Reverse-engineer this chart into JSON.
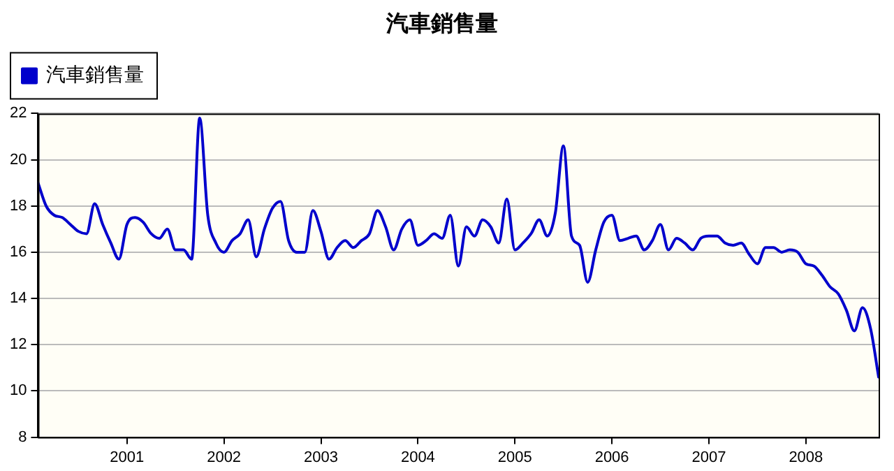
{
  "chart_data": {
    "type": "line",
    "title": "汽車銷售量",
    "legend": "top left",
    "grid": "y",
    "marker": "none",
    "line_style": "solid",
    "x": [
      "2000-02",
      "2000-03",
      "2000-04",
      "2000-05",
      "2000-06",
      "2000-07",
      "2000-08",
      "2000-09",
      "2000-10",
      "2000-11",
      "2000-12",
      "2001-01",
      "2001-02",
      "2001-03",
      "2001-04",
      "2001-05",
      "2001-06",
      "2001-07",
      "2001-08",
      "2001-09",
      "2001-10",
      "2001-11",
      "2001-12",
      "2002-01",
      "2002-02",
      "2002-03",
      "2002-04",
      "2002-05",
      "2002-06",
      "2002-07",
      "2002-08",
      "2002-09",
      "2002-10",
      "2002-11",
      "2002-12",
      "2003-01",
      "2003-02",
      "2003-03",
      "2003-04",
      "2003-05",
      "2003-06",
      "2003-07",
      "2003-08",
      "2003-09",
      "2003-10",
      "2003-11",
      "2003-12",
      "2004-01",
      "2004-02",
      "2004-03",
      "2004-04",
      "2004-05",
      "2004-06",
      "2004-07",
      "2004-08",
      "2004-09",
      "2004-10",
      "2004-11",
      "2004-12",
      "2005-01",
      "2005-02",
      "2005-03",
      "2005-04",
      "2005-05",
      "2005-06",
      "2005-07",
      "2005-08",
      "2005-09",
      "2005-10",
      "2005-11",
      "2005-12",
      "2006-01",
      "2006-02",
      "2006-03",
      "2006-04",
      "2006-05",
      "2006-06",
      "2006-07",
      "2006-08",
      "2006-09",
      "2006-10",
      "2006-11",
      "2006-12",
      "2007-01",
      "2007-02",
      "2007-03",
      "2007-04",
      "2007-05",
      "2007-06",
      "2007-07",
      "2007-08",
      "2007-09",
      "2007-10",
      "2007-11",
      "2007-12",
      "2008-01",
      "2008-02",
      "2008-03",
      "2008-04",
      "2008-05",
      "2008-06",
      "2008-07",
      "2008-08",
      "2008-09",
      "2008-10"
    ],
    "xlim": [
      "2000-02",
      "2008-10"
    ],
    "xticks": [
      "2001",
      "2002",
      "2003",
      "2004",
      "2005",
      "2006",
      "2007",
      "2008"
    ],
    "ylim": [
      8,
      22
    ],
    "yticks": [
      8,
      10,
      12,
      14,
      16,
      18,
      20,
      22
    ],
    "series": [
      {
        "name": "汽車銷售量",
        "color": "#0000cc",
        "values": [
          19.0,
          18.0,
          17.6,
          17.5,
          17.2,
          16.9,
          16.8,
          18.1,
          17.2,
          16.4,
          15.7,
          17.2,
          17.5,
          17.3,
          16.8,
          16.6,
          17.0,
          16.1,
          16.1,
          15.7,
          21.8,
          17.6,
          16.4,
          16.0,
          16.5,
          16.8,
          17.4,
          15.8,
          17.0,
          17.9,
          18.2,
          16.5,
          16.0,
          16.0,
          17.8,
          16.9,
          15.7,
          16.2,
          16.5,
          16.2,
          16.5,
          16.8,
          17.8,
          17.1,
          16.1,
          17.0,
          17.4,
          16.3,
          16.5,
          16.8,
          16.6,
          17.6,
          15.4,
          17.1,
          16.7,
          17.4,
          17.1,
          16.4,
          18.3,
          16.1,
          16.4,
          16.8,
          17.4,
          16.7,
          17.7,
          20.6,
          16.7,
          16.3,
          14.7,
          16.1,
          17.3,
          17.6,
          16.5,
          16.6,
          16.7,
          16.1,
          16.5,
          17.2,
          16.1,
          16.6,
          16.4,
          16.1,
          16.6,
          16.7,
          16.7,
          16.4,
          16.3,
          16.4,
          15.9,
          15.5,
          16.2,
          16.2,
          16.0,
          16.1,
          16.0,
          15.5,
          15.4,
          15.0,
          14.5,
          14.2,
          13.5,
          12.6,
          13.6,
          12.7,
          10.6
        ]
      }
    ]
  }
}
